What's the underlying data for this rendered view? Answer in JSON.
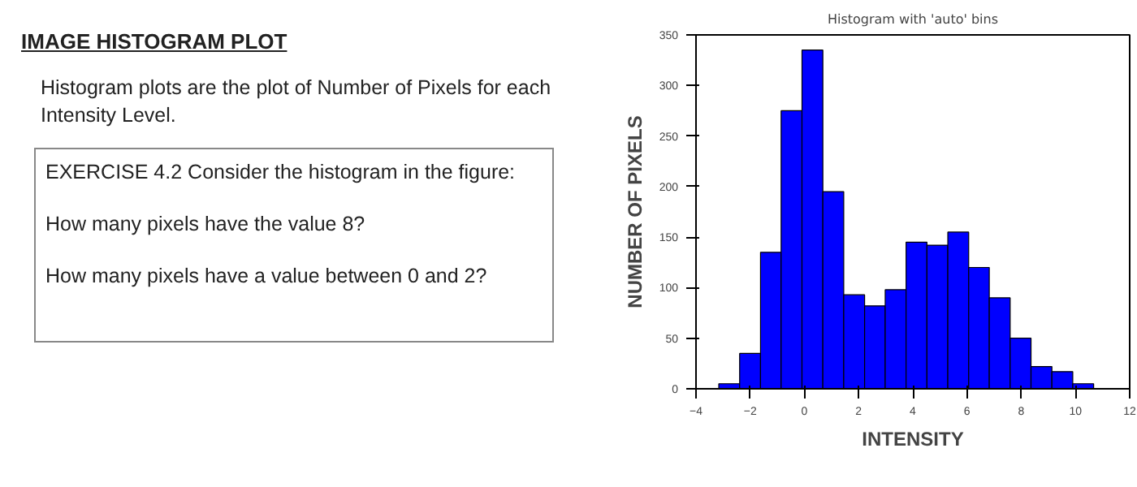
{
  "chart_data": {
    "type": "histogram",
    "title": "Histogram with 'auto' bins",
    "xlabel": "INTENSITY",
    "ylabel": "NUMBER OF PIXELS",
    "annotations": [
      "IMAGE HISTOGRAM PLOT",
      "Histogram plots are the plot of Number of Pixels for each Intensity Level.",
      "EXERCISE 4.2 Consider the histogram in the figure:",
      "How many pixels have the value 8?",
      "How many pixels have a value between 0 and 2?"
    ],
    "bins": [
      -3.16,
      -2.39,
      -1.62,
      -0.86,
      -0.09,
      0.68,
      1.45,
      2.22,
      2.98,
      3.75,
      4.52,
      5.29,
      6.06,
      6.82,
      7.59,
      8.36,
      9.13,
      9.9,
      10.67
    ],
    "values": [
      5,
      35,
      135,
      275,
      335,
      195,
      93,
      82,
      98,
      145,
      142,
      155,
      120,
      90,
      50,
      22,
      17,
      5
    ],
    "color": "#0000ff",
    "xlim": [
      -4,
      12
    ],
    "xticks": [
      -4,
      -2,
      0,
      2,
      4,
      6,
      8,
      10,
      12
    ],
    "ylim": [
      0,
      350
    ],
    "yticks": [
      0,
      50,
      100,
      150,
      200,
      250,
      300,
      350
    ],
    "grid": false
  }
}
